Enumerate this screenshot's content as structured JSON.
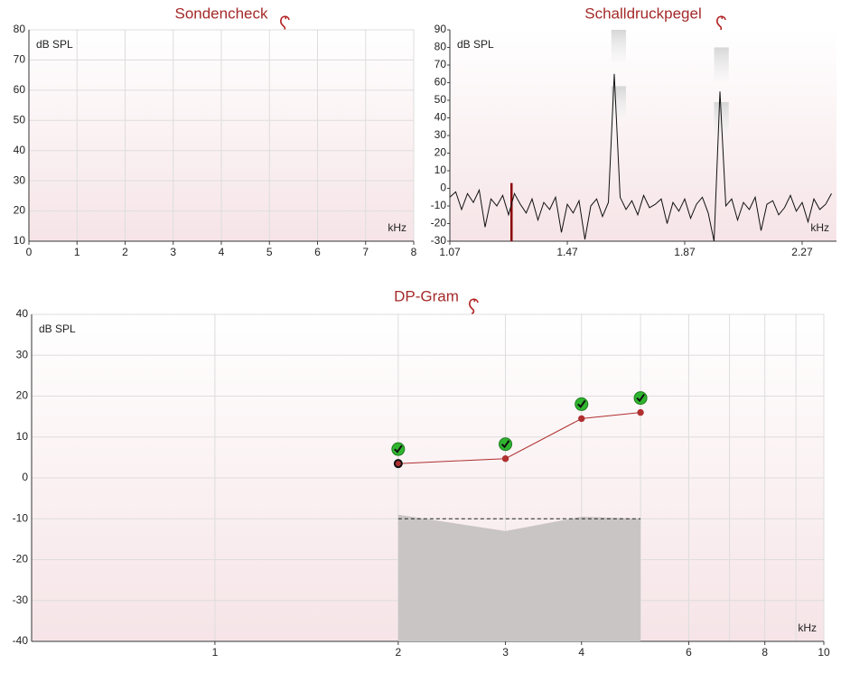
{
  "chart_data": [
    {
      "type": "line",
      "title": "Sondencheck",
      "y_label": "dB SPL",
      "x_label": "kHz",
      "xlim": [
        0,
        8
      ],
      "xticks": [
        0,
        1,
        2,
        3,
        4,
        5,
        6,
        7,
        8
      ],
      "ylim": [
        10,
        80
      ],
      "yticks": [
        10,
        20,
        30,
        40,
        50,
        60,
        70,
        80
      ],
      "grid": true,
      "series": []
    },
    {
      "type": "line",
      "title": "Schalldruckpegel",
      "y_label": "dB SPL",
      "x_label": "kHz",
      "xlim": [
        1.07,
        2.387
      ],
      "xticks": [
        1.07,
        1.47,
        1.87,
        2.27
      ],
      "ylim": [
        -30,
        90
      ],
      "yticks": [
        -30,
        -20,
        -10,
        0,
        10,
        20,
        30,
        40,
        50,
        60,
        70,
        80,
        90
      ],
      "grid": false,
      "x": [
        1.07,
        1.09,
        1.11,
        1.13,
        1.15,
        1.17,
        1.19,
        1.21,
        1.23,
        1.25,
        1.27,
        1.29,
        1.31,
        1.33,
        1.35,
        1.37,
        1.39,
        1.41,
        1.43,
        1.45,
        1.47,
        1.49,
        1.51,
        1.53,
        1.55,
        1.57,
        1.59,
        1.61,
        1.63,
        1.65,
        1.67,
        1.69,
        1.71,
        1.73,
        1.75,
        1.77,
        1.79,
        1.81,
        1.83,
        1.85,
        1.87,
        1.89,
        1.91,
        1.93,
        1.95,
        1.97,
        1.99,
        2.01,
        2.03,
        2.05,
        2.07,
        2.09,
        2.11,
        2.13,
        2.15,
        2.17,
        2.19,
        2.21,
        2.23,
        2.25,
        2.27,
        2.29,
        2.31,
        2.33,
        2.35,
        2.37
      ],
      "series": [
        {
          "color": "#111111",
          "values": [
            -5,
            -2,
            -12,
            -3,
            -8,
            -1,
            -22,
            -6,
            -10,
            -4,
            -15,
            -3,
            -9,
            -14,
            -6,
            -18,
            -8,
            -12,
            -5,
            -25,
            -9,
            -14,
            -7,
            -29,
            -10,
            -6,
            -16,
            -8,
            65,
            -5,
            -12,
            -7,
            -15,
            -4,
            -11,
            -9,
            -6,
            -20,
            -8,
            -13,
            -6,
            -17,
            -9,
            -5,
            -14,
            -30,
            55,
            -10,
            -6,
            -18,
            -8,
            -12,
            -5,
            -24,
            -9,
            -7,
            -15,
            -11,
            -4,
            -13,
            -8,
            -19,
            -6,
            -12,
            -9,
            -3
          ]
        }
      ],
      "marker": {
        "x": 1.28,
        "value": 3,
        "color": "#8b0000"
      },
      "boxes": [
        {
          "x": [
            1.62,
            1.67
          ],
          "y": [
            72,
            90
          ]
        },
        {
          "x": [
            1.62,
            1.67
          ],
          "y": [
            40,
            58
          ]
        },
        {
          "x": [
            1.97,
            2.02
          ],
          "y": [
            61,
            80
          ]
        },
        {
          "x": [
            1.97,
            2.02
          ],
          "y": [
            29,
            49
          ]
        }
      ]
    },
    {
      "type": "line",
      "title": "DP-Gram",
      "y_label": "dB SPL",
      "x_label": "kHz",
      "xscale": "log",
      "xlim": [
        0.5,
        10
      ],
      "xticks": [
        1,
        2,
        3,
        4,
        6,
        8,
        10
      ],
      "xminor": [
        5,
        7,
        9
      ],
      "ylim": [
        -40,
        40
      ],
      "yticks": [
        -40,
        -30,
        -20,
        -10,
        0,
        10,
        20,
        30,
        40
      ],
      "grid": true,
      "x": [
        2,
        3,
        4,
        5
      ],
      "series": [
        {
          "color": "#b03030",
          "values": [
            3.5,
            4.7,
            14.5,
            16
          ]
        }
      ],
      "selected": 0,
      "noise_floor": {
        "color": "#c9c5c5",
        "values": [
          -9,
          -13,
          -9.5,
          -10
        ]
      },
      "threshold": -10
    }
  ]
}
